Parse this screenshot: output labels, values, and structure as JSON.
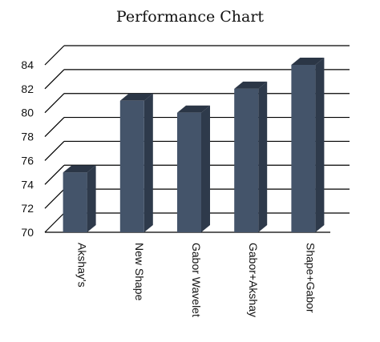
{
  "chart_data": {
    "type": "bar",
    "title": "Performance Chart",
    "categories": [
      "Akshay's",
      "New Shape",
      "Gabor Wavelet",
      "Gabor+Akshay",
      "Shape+Gabor"
    ],
    "values": [
      75,
      81,
      80,
      82,
      84
    ],
    "ylim": [
      70,
      84
    ],
    "yticks": [
      70,
      72,
      74,
      76,
      78,
      80,
      82,
      84
    ],
    "grid": true,
    "style": "3d-column",
    "colors": {
      "bar_front": "#44546a",
      "bar_side": "#2e3a4b",
      "bar_top": "#2b3646",
      "grid": "#000000"
    }
  }
}
